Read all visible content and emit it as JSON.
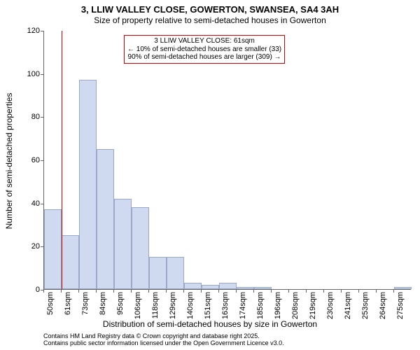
{
  "title": "3, LLIW VALLEY CLOSE, GOWERTON, SWANSEA, SA4 3AH",
  "subtitle": "Size of property relative to semi-detached houses in Gowerton",
  "ylabel": "Number of semi-detached properties",
  "xlabel": "Distribution of semi-detached houses by size in Gowerton",
  "footer_line1": "Contains HM Land Registry data © Crown copyright and database right 2025.",
  "footer_line2": "Contains public sector information licensed under the Open Government Licence v3.0.",
  "annotation": {
    "line1": "3 LLIW VALLEY CLOSE: 61sqm",
    "line2": "← 10% of semi-detached houses are smaller (33)",
    "line3": "90% of semi-detached houses are larger (309) →",
    "border_color": "#cc0000",
    "fontsize": 10
  },
  "chart": {
    "type": "histogram",
    "ylim": [
      0,
      120
    ],
    "ytick_step": 20,
    "bar_fill": "#cfd9ef",
    "bar_stroke": "#9aa8c9",
    "background": "#ffffff",
    "title_fontsize": 13,
    "subtitle_fontsize": 12,
    "axis_label_fontsize": 12,
    "tick_fontsize": 11,
    "footer_fontsize": 9,
    "reference_line_color": "#cc0000",
    "reference_value": 61,
    "bars": [
      {
        "label": "50sqm",
        "value": 37
      },
      {
        "label": "61sqm",
        "value": 25
      },
      {
        "label": "73sqm",
        "value": 97
      },
      {
        "label": "84sqm",
        "value": 65
      },
      {
        "label": "95sqm",
        "value": 42
      },
      {
        "label": "106sqm",
        "value": 38
      },
      {
        "label": "118sqm",
        "value": 15
      },
      {
        "label": "129sqm",
        "value": 15
      },
      {
        "label": "140sqm",
        "value": 3
      },
      {
        "label": "151sqm",
        "value": 2
      },
      {
        "label": "163sqm",
        "value": 3
      },
      {
        "label": "174sqm",
        "value": 1
      },
      {
        "label": "185sqm",
        "value": 1
      },
      {
        "label": "196sqm",
        "value": 0
      },
      {
        "label": "208sqm",
        "value": 0
      },
      {
        "label": "219sqm",
        "value": 0
      },
      {
        "label": "230sqm",
        "value": 0
      },
      {
        "label": "241sqm",
        "value": 0
      },
      {
        "label": "253sqm",
        "value": 0
      },
      {
        "label": "264sqm",
        "value": 0
      },
      {
        "label": "275sqm",
        "value": 1
      }
    ]
  }
}
